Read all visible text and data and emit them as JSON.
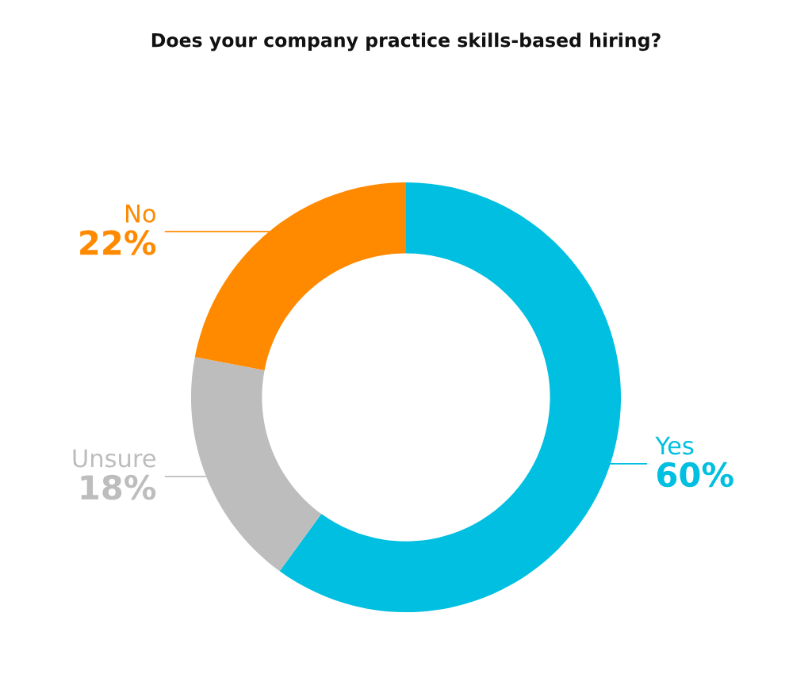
{
  "chart_data": {
    "type": "donut",
    "title": "Does your company practice skills-based hiring?",
    "categories": [
      "Yes",
      "Unsure",
      "No"
    ],
    "values": [
      60,
      18,
      22
    ],
    "value_labels": [
      "60%",
      "18%",
      "22%"
    ],
    "colors": [
      "#00bfe0",
      "#bdbdbd",
      "#ff8a00"
    ]
  }
}
